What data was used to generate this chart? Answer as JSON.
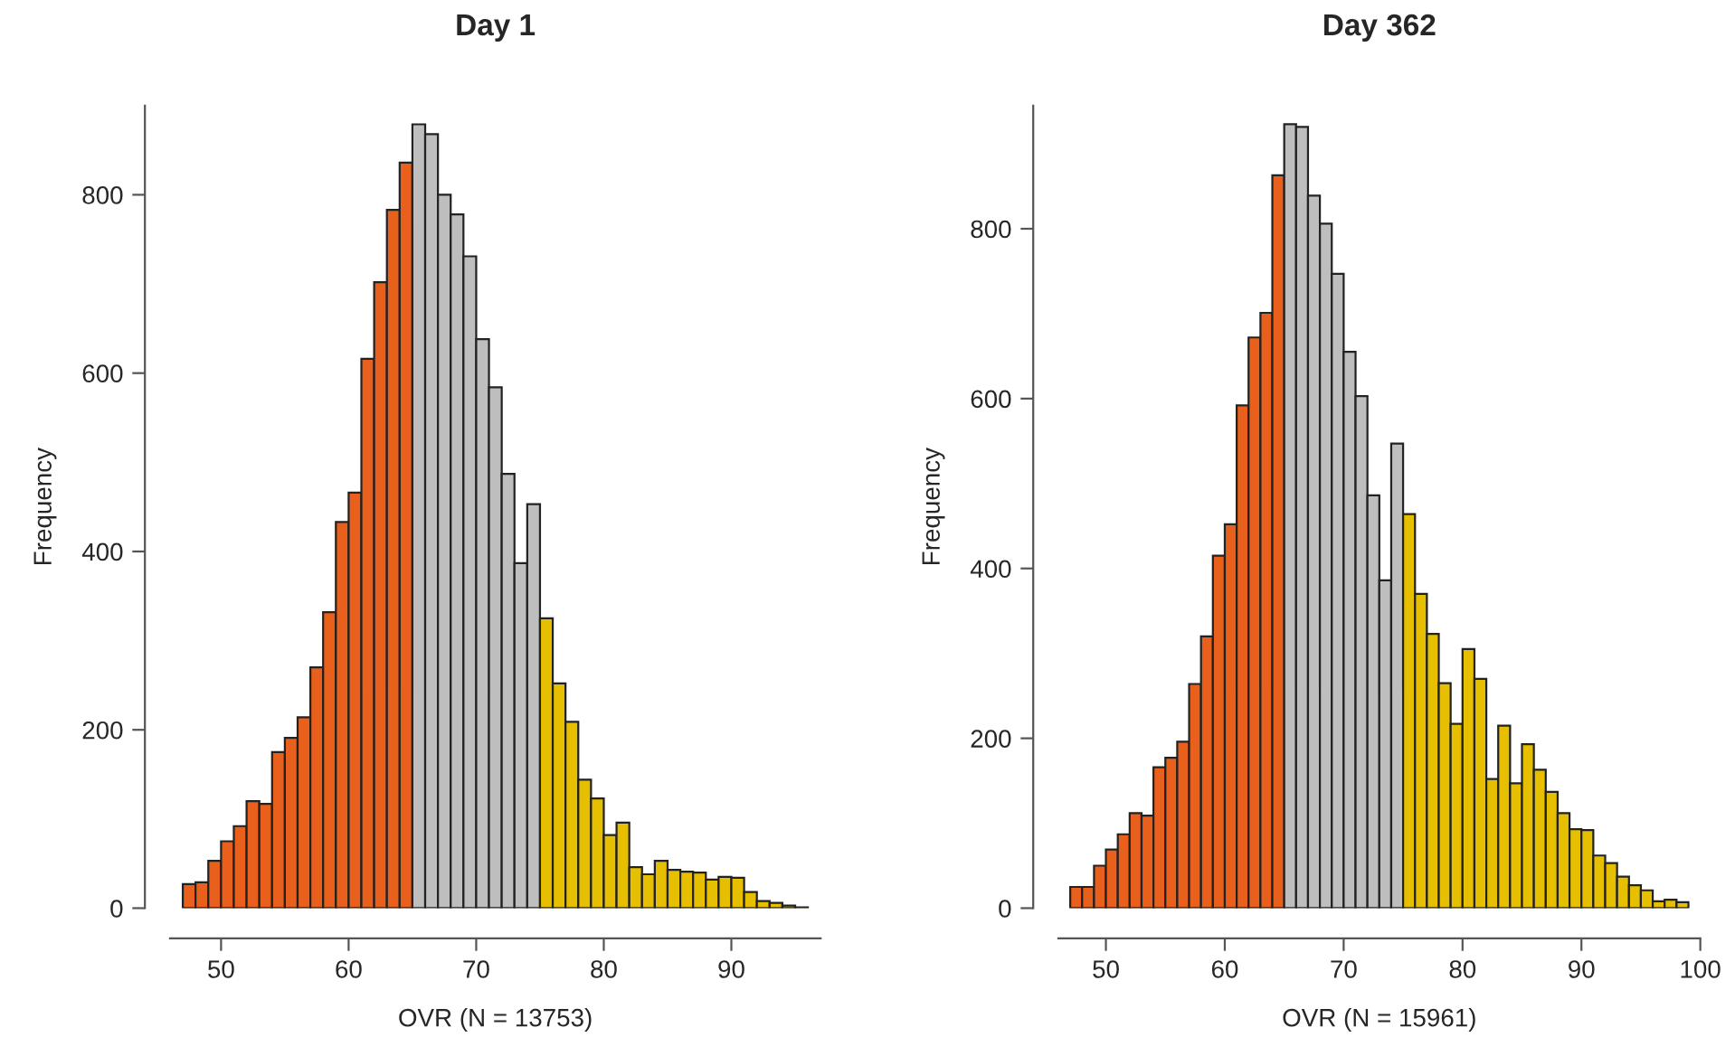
{
  "chart_data": [
    {
      "type": "histogram",
      "title": "Day 1",
      "xlabel": "OVR (N = 13753)",
      "ylabel": "Frequency",
      "bins": [
        47,
        48,
        49,
        50,
        51,
        52,
        53,
        54,
        55,
        56,
        57,
        58,
        59,
        60,
        61,
        62,
        63,
        64,
        65,
        66,
        67,
        68,
        69,
        70,
        71,
        72,
        73,
        74,
        75,
        76,
        77,
        78,
        79,
        80,
        81,
        82,
        83,
        84,
        85,
        86,
        87,
        88,
        89,
        90,
        91,
        92,
        93,
        94,
        95,
        96
      ],
      "values": [
        27,
        29,
        53,
        75,
        92,
        120,
        117,
        175,
        191,
        214,
        270,
        332,
        433,
        466,
        616,
        702,
        783,
        836,
        879,
        868,
        800,
        778,
        731,
        638,
        584,
        487,
        387,
        453,
        325,
        252,
        209,
        144,
        123,
        82,
        96,
        46,
        38,
        53,
        43,
        41,
        40,
        32,
        35,
        34,
        18,
        8,
        6,
        3,
        1
      ],
      "colors": [
        "#e8601c",
        "#e8601c",
        "#e8601c",
        "#e8601c",
        "#e8601c",
        "#e8601c",
        "#e8601c",
        "#e8601c",
        "#e8601c",
        "#e8601c",
        "#e8601c",
        "#e8601c",
        "#e8601c",
        "#e8601c",
        "#e8601c",
        "#e8601c",
        "#e8601c",
        "#e8601c",
        "#bebebe",
        "#bebebe",
        "#bebebe",
        "#bebebe",
        "#bebebe",
        "#bebebe",
        "#bebebe",
        "#bebebe",
        "#bebebe",
        "#bebebe",
        "#e6c000",
        "#e6c000",
        "#e6c000",
        "#e6c000",
        "#e6c000",
        "#e6c000",
        "#e6c000",
        "#e6c000",
        "#e6c000",
        "#e6c000",
        "#e6c000",
        "#e6c000",
        "#e6c000",
        "#e6c000",
        "#e6c000",
        "#e6c000",
        "#e6c000",
        "#e6c000",
        "#e6c000",
        "#e6c000",
        "#e6c000"
      ],
      "xlim": [
        46,
        97
      ],
      "ylim": [
        0,
        900
      ],
      "xticks": [
        50,
        60,
        70,
        80,
        90
      ],
      "yticks": [
        0,
        200,
        400,
        600,
        800
      ],
      "grid": false,
      "legend": false
    },
    {
      "type": "histogram",
      "title": "Day 362",
      "xlabel": "OVR (N = 15961)",
      "ylabel": "Frequency",
      "bins": [
        47,
        48,
        49,
        50,
        51,
        52,
        53,
        54,
        55,
        56,
        57,
        58,
        59,
        60,
        61,
        62,
        63,
        64,
        65,
        66,
        67,
        68,
        69,
        70,
        71,
        72,
        73,
        74,
        75,
        76,
        77,
        78,
        79,
        80,
        81,
        82,
        83,
        84,
        85,
        86,
        87,
        88,
        89,
        90,
        91,
        92,
        93,
        94,
        95,
        96,
        97,
        98,
        99
      ],
      "values": [
        25,
        25,
        50,
        69,
        87,
        112,
        109,
        166,
        177,
        196,
        264,
        320,
        415,
        452,
        592,
        672,
        701,
        863,
        923,
        920,
        839,
        806,
        747,
        655,
        603,
        486,
        386,
        547,
        464,
        370,
        323,
        265,
        217,
        305,
        270,
        152,
        215,
        147,
        193,
        163,
        137,
        112,
        93,
        92,
        62,
        53,
        37,
        27,
        21,
        8,
        10,
        7
      ],
      "colors": [
        "#e8601c",
        "#e8601c",
        "#e8601c",
        "#e8601c",
        "#e8601c",
        "#e8601c",
        "#e8601c",
        "#e8601c",
        "#e8601c",
        "#e8601c",
        "#e8601c",
        "#e8601c",
        "#e8601c",
        "#e8601c",
        "#e8601c",
        "#e8601c",
        "#e8601c",
        "#e8601c",
        "#bebebe",
        "#bebebe",
        "#bebebe",
        "#bebebe",
        "#bebebe",
        "#bebebe",
        "#bebebe",
        "#bebebe",
        "#bebebe",
        "#bebebe",
        "#e6c000",
        "#e6c000",
        "#e6c000",
        "#e6c000",
        "#e6c000",
        "#e6c000",
        "#e6c000",
        "#e6c000",
        "#e6c000",
        "#e6c000",
        "#e6c000",
        "#e6c000",
        "#e6c000",
        "#e6c000",
        "#e6c000",
        "#e6c000",
        "#e6c000",
        "#e6c000",
        "#e6c000",
        "#e6c000",
        "#e6c000",
        "#e6c000",
        "#e6c000",
        "#e6c000"
      ],
      "xlim": [
        46,
        100
      ],
      "ylim": [
        0,
        945
      ],
      "xticks": [
        50,
        60,
        70,
        80,
        90,
        100
      ],
      "yticks": [
        0,
        200,
        400,
        600,
        800
      ],
      "grid": false,
      "legend": false
    }
  ]
}
